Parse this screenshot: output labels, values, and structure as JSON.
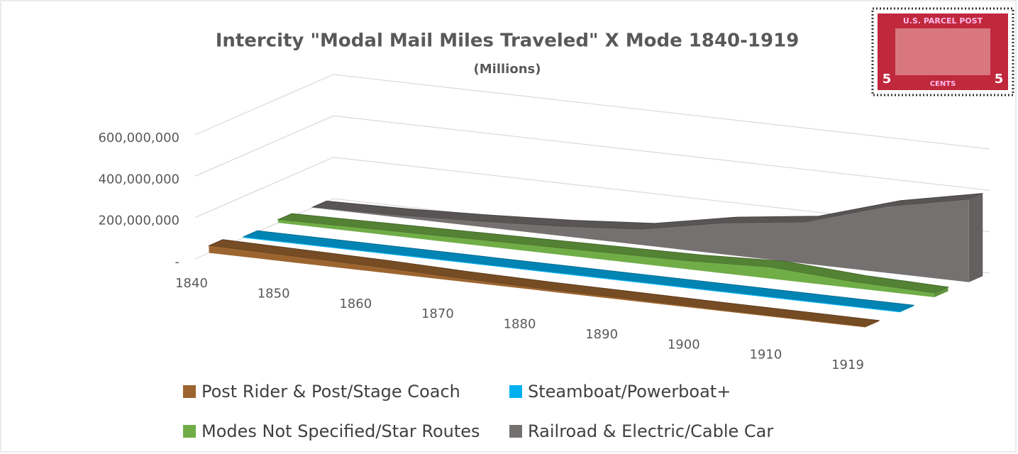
{
  "chart_data": {
    "type": "area3d",
    "title": "Intercity \"Modal Mail Miles Traveled\" X Mode 1840-1919",
    "subtitle": "(Millions)",
    "categories": [
      "1840",
      "1850",
      "1860",
      "1870",
      "1880",
      "1890",
      "1900",
      "1910",
      "1919"
    ],
    "series": [
      {
        "name": "Post Rider & Post/Stage Coach",
        "color": "#9c6530",
        "values": [
          35000000,
          30000000,
          25000000,
          15000000,
          10000000,
          8000000,
          6000000,
          5000000,
          4000000
        ]
      },
      {
        "name": "Steamboat/Powerboat+",
        "color": "#00b0f0",
        "values": [
          5000000,
          5000000,
          5000000,
          5000000,
          5000000,
          5000000,
          5000000,
          5000000,
          5000000
        ]
      },
      {
        "name": "Modes Not Specified/Star Routes",
        "color": "#70ad47",
        "values": [
          15000000,
          20000000,
          25000000,
          30000000,
          35000000,
          40000000,
          55000000,
          30000000,
          20000000
        ]
      },
      {
        "name": "Railroad & Electric/Cable Car",
        "color": "#767171",
        "values": [
          3000000,
          10000000,
          25000000,
          45000000,
          75000000,
          150000000,
          200000000,
          320000000,
          400000000
        ]
      }
    ],
    "ylim": [
      0,
      600000000
    ],
    "yticks": [
      {
        "value": 0,
        "label": "-"
      },
      {
        "value": 200000000,
        "label": "200,000,000"
      },
      {
        "value": 400000000,
        "label": "400,000,000"
      },
      {
        "value": 600000000,
        "label": "600,000,000"
      }
    ],
    "grid": true,
    "legend": "bottom"
  },
  "stamp": {
    "top": "U.S. PARCEL POST",
    "left": "5",
    "right": "5",
    "bottom": "CENTS"
  }
}
